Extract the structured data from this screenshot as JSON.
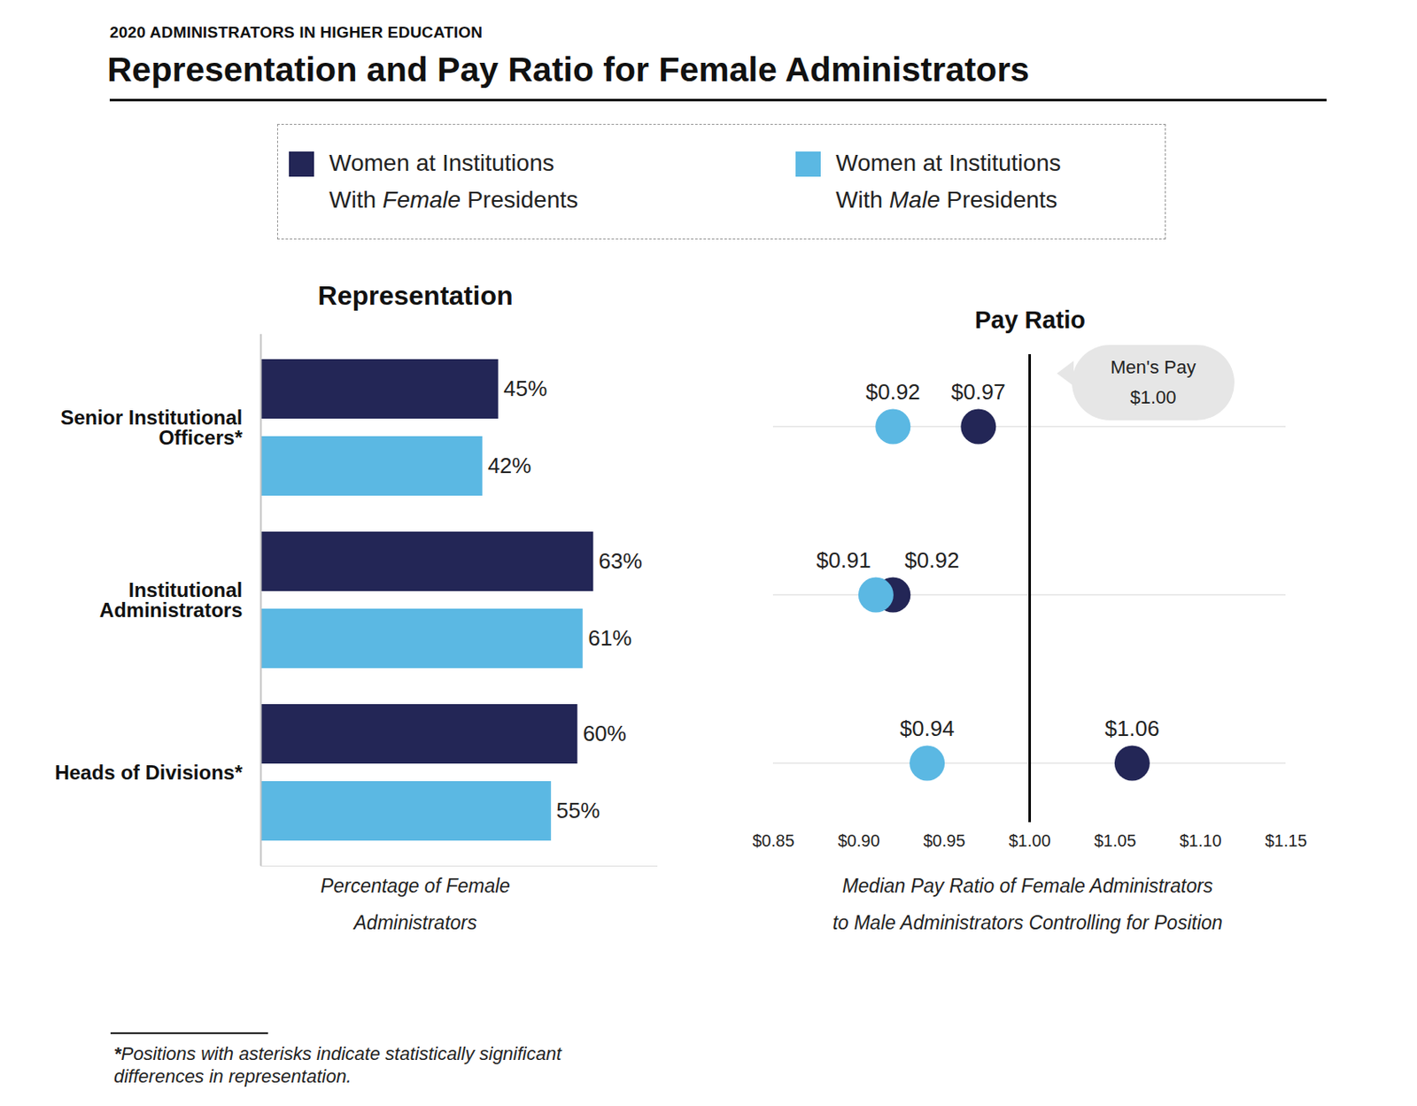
{
  "header": {
    "kicker": "2020 ADMINISTRATORS IN HIGHER EDUCATION",
    "title": "Representation and Pay Ratio for Female Administrators"
  },
  "footnote": "*Positions with asterisks indicate statistically significant differences in representation.",
  "chart_data": [
    {
      "type": "bar",
      "title": "Representation",
      "orientation": "horizontal",
      "legend": "top",
      "categories": [
        "Senior Institutional Officers*",
        "Institutional Administrators",
        "Heads of Divisions*"
      ],
      "series": [
        {
          "name": "Women at Institutions With Female Presidents",
          "color": "#232656",
          "values": [
            45,
            63,
            60
          ],
          "value_labels": [
            "45%",
            "63%",
            "60%"
          ]
        },
        {
          "name": "Women at Institutions With Male Presidents",
          "color": "#5bb8e3",
          "values": [
            42,
            61,
            55
          ],
          "value_labels": [
            "42%",
            "61%",
            "55%"
          ]
        }
      ],
      "data_labels": true,
      "xlim": [
        0,
        75
      ],
      "xticks": [],
      "x_label": "Percentage of Female Administrators",
      "tick_labels": "y"
    },
    {
      "type": "dot",
      "title": "Pay Ratio",
      "categories": [
        "Senior Institutional Officers*",
        "Institutional Administrators",
        "Heads of Divisions*"
      ],
      "series": [
        {
          "name": "Women at Institutions With Female Presidents",
          "color": "#232656",
          "values": [
            0.97,
            0.92,
            1.06
          ],
          "value_labels": [
            "$0.97",
            "$0.92",
            "$1.06"
          ]
        },
        {
          "name": "Women at Institutions With Male Presidents",
          "color": "#5bb8e3",
          "values": [
            0.92,
            0.91,
            0.94
          ],
          "value_labels": [
            "$0.92",
            "$0.91",
            "$0.94"
          ]
        }
      ],
      "data_labels": true,
      "grid": true,
      "xlim": [
        0.85,
        1.15
      ],
      "xticks": [
        {
          "value": 0.85,
          "label": "$0.85"
        },
        {
          "value": 0.9,
          "label": "$0.90"
        },
        {
          "value": 0.95,
          "label": "$0.95"
        },
        {
          "value": 1.0,
          "label": "$1.00"
        },
        {
          "value": 1.05,
          "label": "$1.05"
        },
        {
          "value": 1.1,
          "label": "$1.10"
        },
        {
          "value": 1.15,
          "label": "$1.15"
        }
      ],
      "x_label": "Median Pay Ratio of Female Administrators to Male Administrators Controlling for Position",
      "tick_labels": "x",
      "annotation": {
        "text": "Men's Pay",
        "value": 1.0,
        "value_label": "$1.00"
      }
    }
  ]
}
